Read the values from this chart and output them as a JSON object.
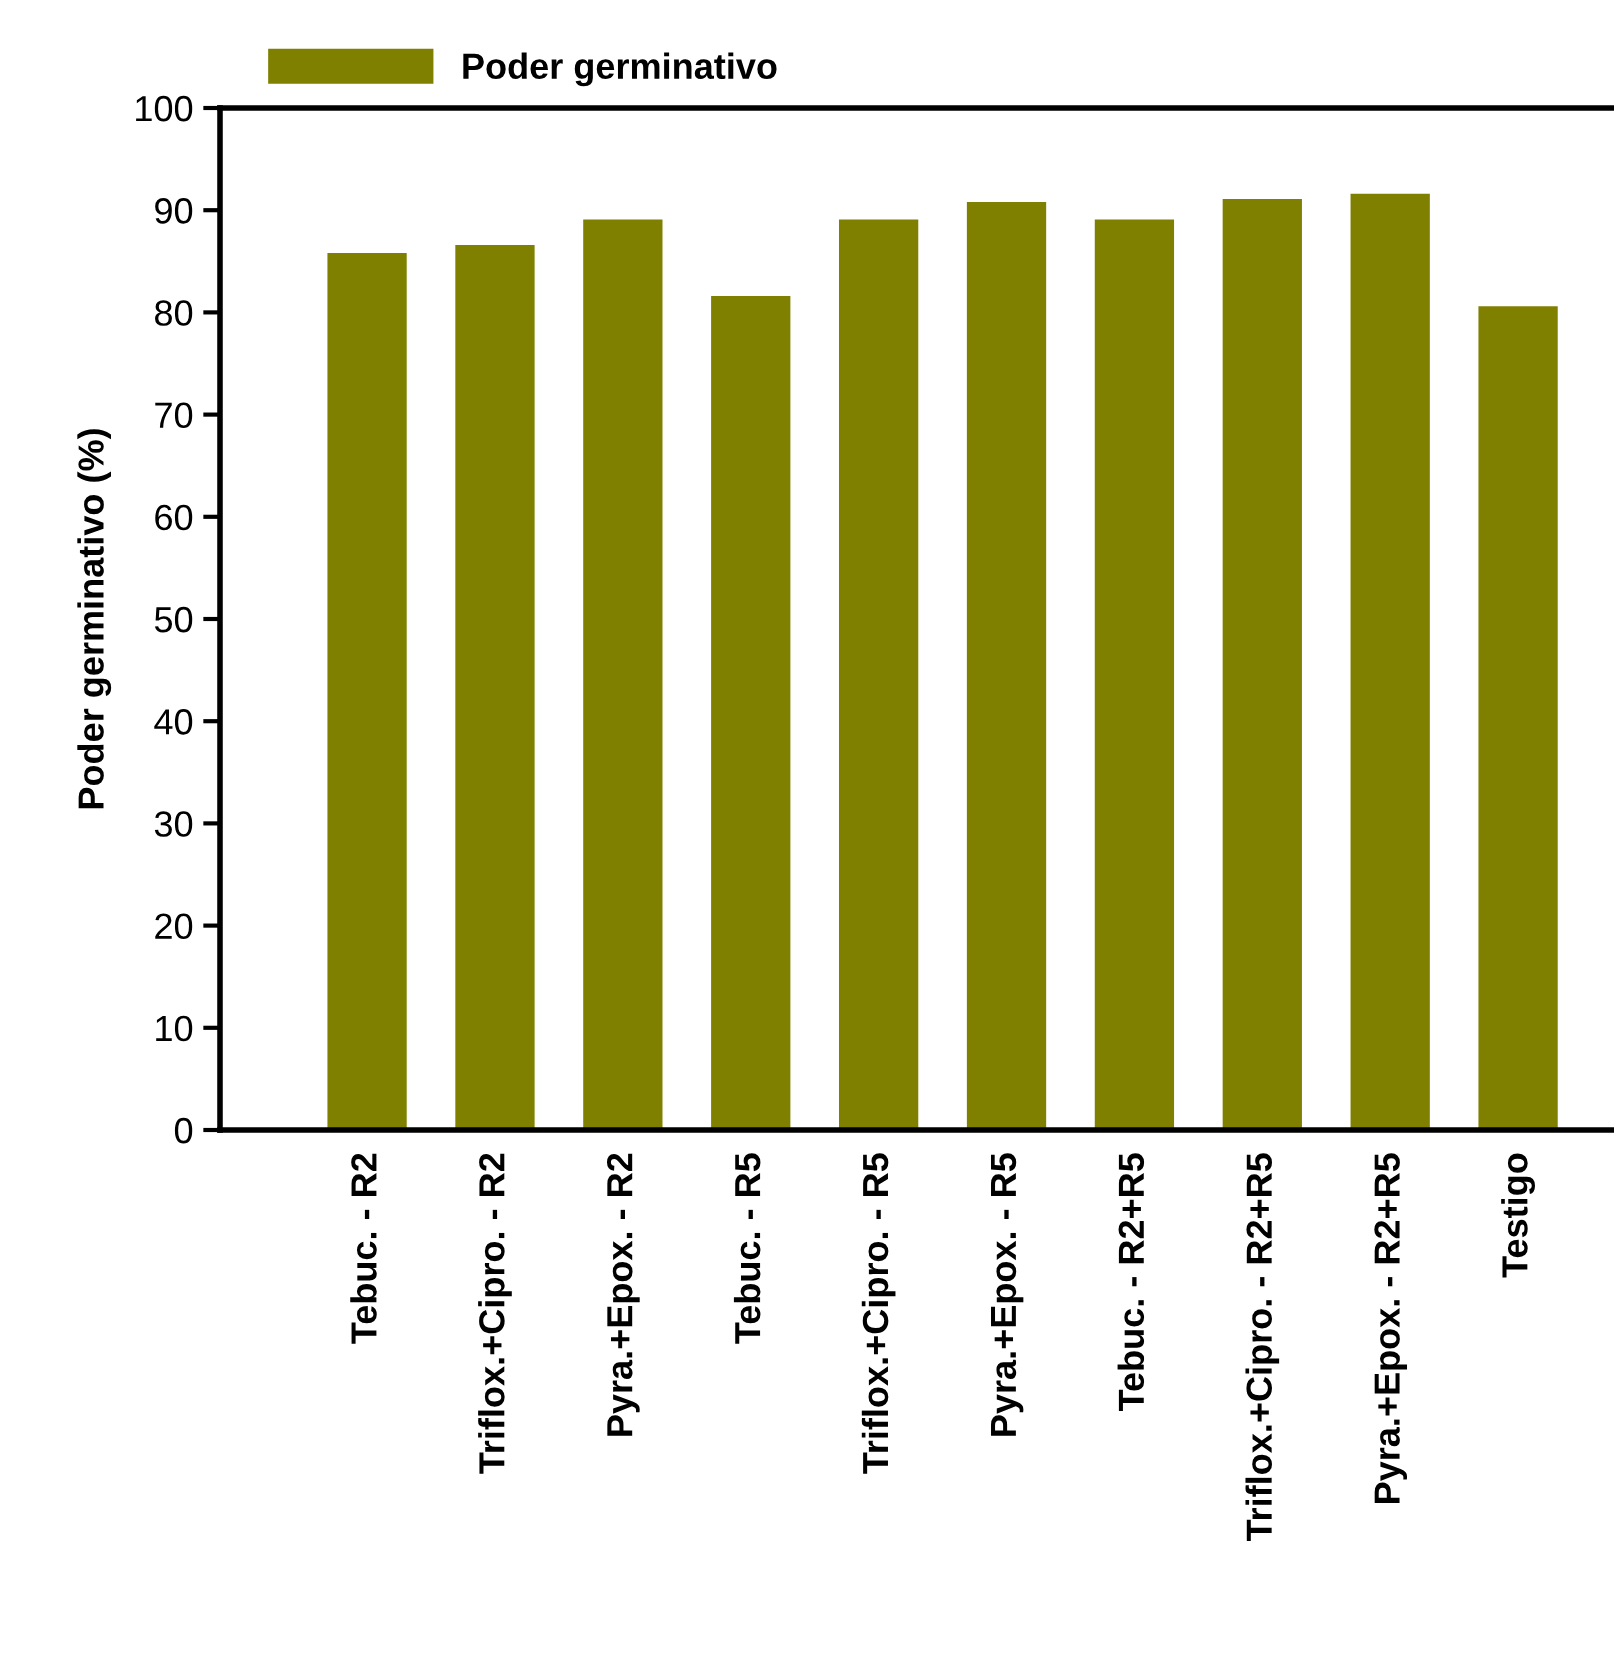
{
  "chart_data": {
    "type": "bar",
    "ylabel": "Poder germinativo (%)",
    "categories": [
      "Tebuc. - R2",
      "Triflox.+Cipro. - R2",
      "Pyra.+Epox. - R2",
      "Tebuc. - R5",
      "Triflox.+Cipro. - R5",
      "Pyra.+Epox. - R5",
      "Tebuc. - R2+R5",
      "Triflox.+Cipro. - R2+R5",
      "Pyra.+Epox. - R2+R5",
      "Testigo"
    ],
    "series": [
      {
        "name": "Poder germinativo",
        "color": "#808000",
        "values": [
          85.8,
          86.6,
          89.1,
          81.6,
          89.1,
          90.8,
          89.1,
          91.1,
          91.6,
          80.6
        ]
      }
    ],
    "ylim": [
      0,
      100
    ],
    "yticks": [
      0,
      10,
      20,
      30,
      40,
      50,
      60,
      70,
      80,
      90,
      100
    ],
    "grid": false,
    "legend": "top left"
  }
}
